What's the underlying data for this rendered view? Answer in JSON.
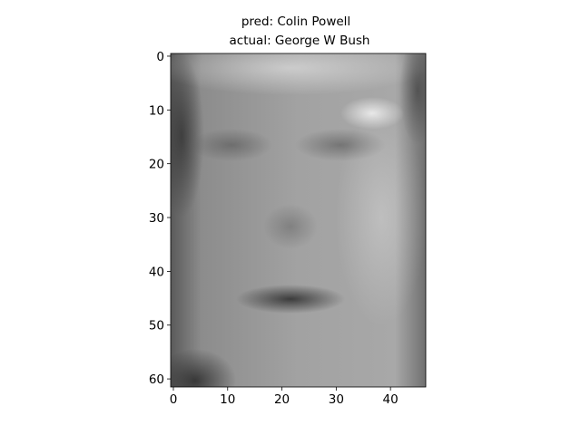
{
  "chart_data": {
    "type": "image",
    "title": [
      "pred: Colin Powell",
      "actual: George W Bush"
    ],
    "xlim": [
      -0.5,
      46.5
    ],
    "ylim": [
      61.5,
      -0.5
    ],
    "xticks": [
      0,
      10,
      20,
      30,
      40
    ],
    "yticks": [
      0,
      10,
      20,
      30,
      40,
      50,
      60
    ]
  }
}
